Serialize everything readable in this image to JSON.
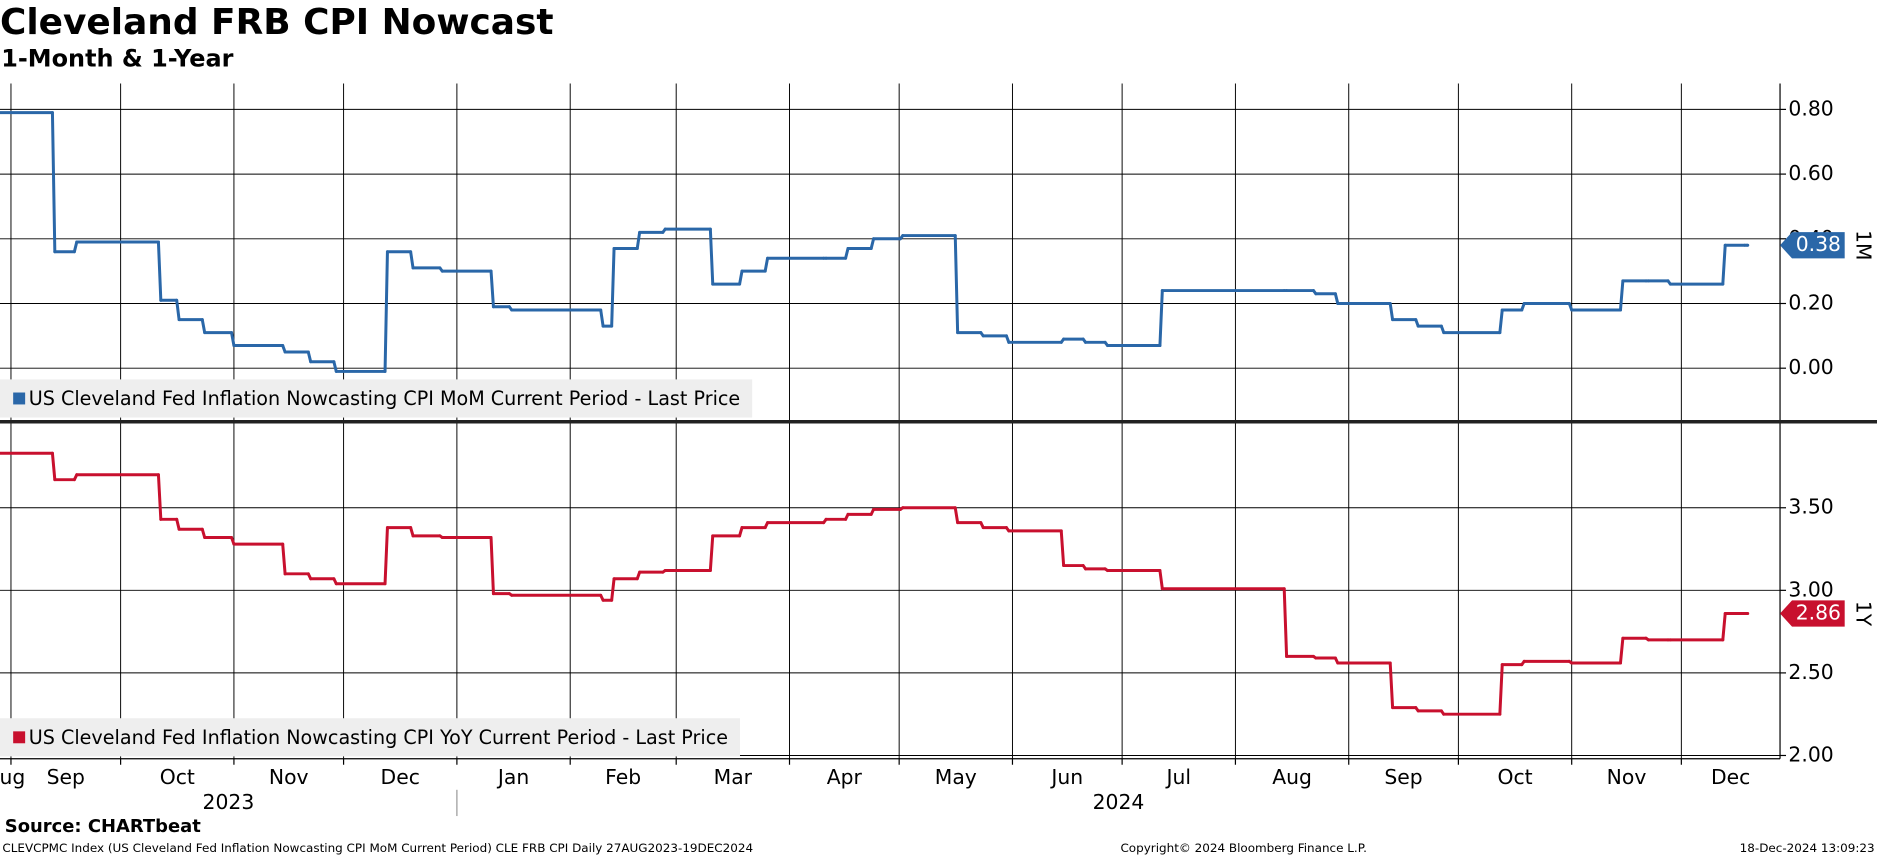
{
  "chart_data": {
    "type": "line",
    "title": "Cleveland FRB CPI Nowcast",
    "subtitle": "1-Month & 1-Year",
    "source": "Source: CHARTbeat",
    "footer_left": "CLEVCPMC Index (US Cleveland Fed Inflation Nowcasting CPI MoM Current Period) CLE FRB CPI  Daily 27AUG2023-19DEC2024",
    "footer_center": "Copyright© 2024 Bloomberg Finance L.P.",
    "footer_right": "18-Dec-2024 13:09:23",
    "xlim": [
      "2023-08-29",
      "2024-12-28"
    ],
    "xticks": [
      "2023-09-01",
      "2023-10-01",
      "2023-11-01",
      "2023-12-01",
      "2024-01-01",
      "2024-02-01",
      "2024-03-01",
      "2024-04-01",
      "2024-05-01",
      "2024-06-01",
      "2024-07-01",
      "2024-08-01",
      "2024-09-01",
      "2024-10-01",
      "2024-11-01",
      "2024-12-01"
    ],
    "month_labels": [
      "Aug",
      "Sep",
      "Oct",
      "Nov",
      "Dec",
      "Jan",
      "Feb",
      "Mar",
      "Apr",
      "May",
      "Jun",
      "Jul",
      "Aug",
      "Sep",
      "Oct",
      "Nov",
      "Dec"
    ],
    "year_labels": [
      "2023",
      "2024"
    ],
    "grid": true,
    "x": [
      "2023-08-29",
      "2023-09-13",
      "2023-09-19",
      "2023-10-12",
      "2023-10-17",
      "2023-10-24",
      "2023-11-01",
      "2023-11-15",
      "2023-11-22",
      "2023-11-29",
      "2023-12-13",
      "2023-12-20",
      "2023-12-28",
      "2024-01-11",
      "2024-01-16",
      "2024-02-10",
      "2024-02-13",
      "2024-02-20",
      "2024-02-27",
      "2024-03-11",
      "2024-03-19",
      "2024-03-26",
      "2024-04-11",
      "2024-04-17",
      "2024-04-24",
      "2024-05-02",
      "2024-05-17",
      "2024-05-24",
      "2024-05-31",
      "2024-06-15",
      "2024-06-21",
      "2024-06-27",
      "2024-07-12",
      "2024-08-15",
      "2024-08-23",
      "2024-08-29",
      "2024-09-13",
      "2024-09-20",
      "2024-09-27",
      "2024-10-13",
      "2024-10-19",
      "2024-11-01",
      "2024-11-15",
      "2024-11-22",
      "2024-11-28",
      "2024-12-13",
      "2024-12-19"
    ],
    "series": [
      {
        "name": "US Cleveland Fed Inflation Nowcasting CPI MoM Current Period - Last Price",
        "color": "#2a67a8",
        "panel_label": "1M",
        "ylim": [
          -0.16,
          0.88
        ],
        "yticks": [
          {
            "value": 0,
            "label": "0.00"
          },
          {
            "value": 0.2,
            "label": "0.20"
          },
          {
            "value": 0.4,
            "label": "0.40"
          },
          {
            "value": 0.6,
            "label": "0.60"
          },
          {
            "value": 0.8,
            "label": "0.80"
          }
        ],
        "values": [
          0.79,
          0.36,
          0.39,
          0.21,
          0.15,
          0.11,
          0.07,
          0.05,
          0.02,
          -0.01,
          0.36,
          0.31,
          0.3,
          0.19,
          0.18,
          0.13,
          0.37,
          0.42,
          0.43,
          0.26,
          0.3,
          0.34,
          0.34,
          0.37,
          0.4,
          0.41,
          0.11,
          0.1,
          0.08,
          0.09,
          0.08,
          0.07,
          0.24,
          0.24,
          0.23,
          0.2,
          0.15,
          0.13,
          0.11,
          0.18,
          0.2,
          0.18,
          0.27,
          0.27,
          0.26,
          0.38,
          0.38
        ]
      },
      {
        "name": "US Cleveland Fed Inflation Nowcasting CPI YoY Current Period - Last Price",
        "color": "#c8102e",
        "panel_label": "1Y",
        "ylim": [
          1.98,
          4.01
        ],
        "yticks": [
          {
            "value": 2,
            "label": "2.00"
          },
          {
            "value": 2.5,
            "label": "2.50"
          },
          {
            "value": 3,
            "label": "3.00"
          },
          {
            "value": 3.5,
            "label": "3.50"
          }
        ],
        "values": [
          3.83,
          3.67,
          3.7,
          3.43,
          3.37,
          3.32,
          3.28,
          3.1,
          3.07,
          3.04,
          3.38,
          3.33,
          3.32,
          2.98,
          2.97,
          2.94,
          3.07,
          3.11,
          3.12,
          3.33,
          3.38,
          3.41,
          3.43,
          3.46,
          3.49,
          3.5,
          3.41,
          3.38,
          3.36,
          3.15,
          3.13,
          3.12,
          3.01,
          2.6,
          2.59,
          2.56,
          2.29,
          2.27,
          2.25,
          2.55,
          2.57,
          2.56,
          2.71,
          2.7,
          2.7,
          2.86,
          2.86
        ]
      }
    ]
  }
}
